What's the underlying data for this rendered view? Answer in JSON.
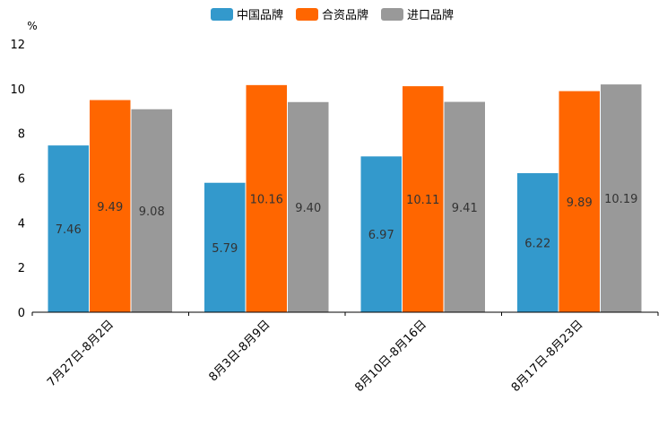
{
  "chart_data": {
    "type": "bar",
    "title": "",
    "xlabel": "",
    "ylabel": "%",
    "ylim": [
      0,
      12
    ],
    "yticks": [
      0,
      2,
      4,
      6,
      8,
      10,
      12
    ],
    "grid": false,
    "legend_position": "top-center",
    "categories": [
      "7月27日-8月2日",
      "8月3日-8月9日",
      "8月10日-8月16日",
      "8月17日-8月23日"
    ],
    "series": [
      {
        "name": "中国品牌",
        "color": "#3399cc",
        "values": [
          7.46,
          5.79,
          6.97,
          6.22
        ],
        "labels": [
          "7.46",
          "5.79",
          "6.97",
          "6.22"
        ]
      },
      {
        "name": "合资品牌",
        "color": "#ff6600",
        "values": [
          9.49,
          10.16,
          10.11,
          9.89
        ],
        "labels": [
          "9.49",
          "10.16",
          "10.11",
          "9.89"
        ]
      },
      {
        "name": "进口品牌",
        "color": "#999999",
        "values": [
          9.08,
          9.4,
          9.41,
          10.19
        ],
        "labels": [
          "9.08",
          "9.40",
          "9.41",
          "10.19"
        ]
      }
    ]
  }
}
